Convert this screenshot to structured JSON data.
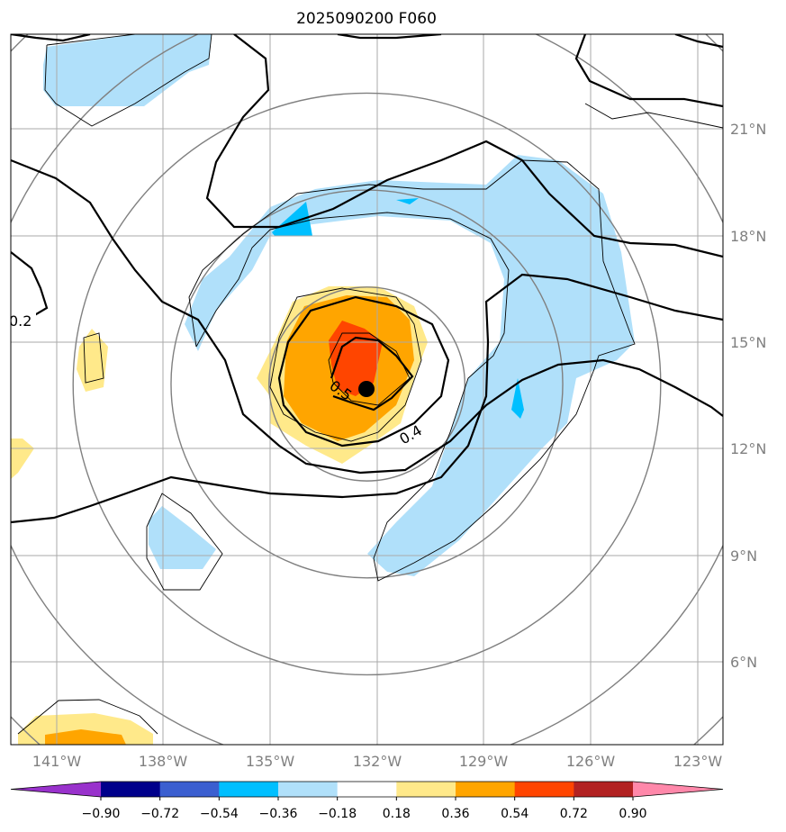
{
  "chart_data": {
    "type": "contour-map",
    "title": "2025090200 F060",
    "x_ticks": [
      "141°W",
      "138°W",
      "135°W",
      "132°W",
      "129°W",
      "126°W",
      "123°W"
    ],
    "y_ticks": [
      "21°N",
      "18°N",
      "15°N",
      "12°N",
      "9°N",
      "6°N"
    ],
    "lon_range": [
      -142.3,
      -122.3
    ],
    "lat_range": [
      3.8,
      23.8
    ],
    "storm_center": {
      "lon": -132.3,
      "lat": 13.7
    },
    "range_rings_count": 5,
    "contour_labels": [
      "0.5",
      "0.4",
      "0.2"
    ],
    "colorbar": {
      "ticks": [
        "−0.90",
        "−0.72",
        "−0.54",
        "−0.36",
        "−0.18",
        "0.18",
        "0.36",
        "0.54",
        "0.72",
        "0.90"
      ],
      "colors": [
        "#9932cc",
        "#00008b",
        "#3b5fd0",
        "#00bfff",
        "#b0e0fa",
        "#ffffff",
        "#ffe98a",
        "#ffa500",
        "#ff4500",
        "#b22222",
        "#ff88aa"
      ]
    }
  }
}
